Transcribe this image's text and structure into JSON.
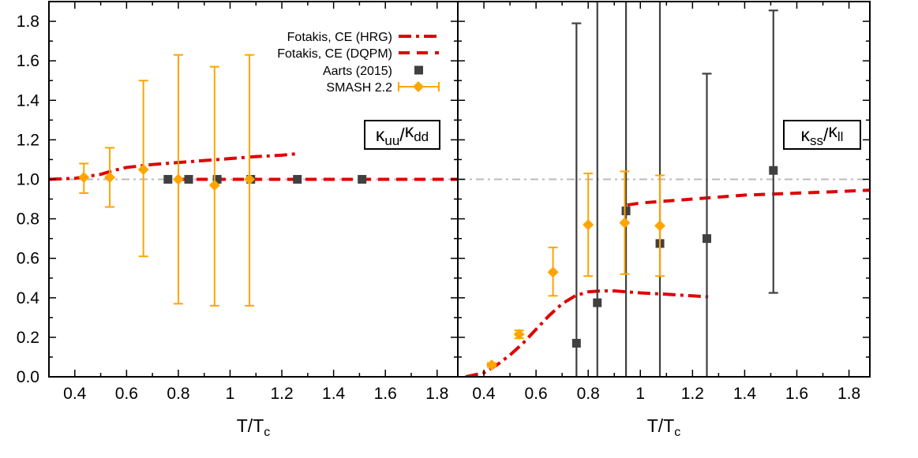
{
  "colors": {
    "hrg": "#e00000",
    "dqpm": "#e00000",
    "aarts": "#404040",
    "smash": "#ffa500",
    "reference": "#bbbbbb",
    "frame": "#000000"
  },
  "legend": {
    "placement": "top-center of left panel",
    "entries": [
      {
        "key": "hrg",
        "label": "Fotakis, CE (HRG)",
        "style": "dash-dot line"
      },
      {
        "key": "dqpm",
        "label": "Fotakis, CE (DQPM)",
        "style": "dashed line"
      },
      {
        "key": "aarts",
        "label": "Aarts (2015)",
        "style": "square marker"
      },
      {
        "key": "smash",
        "label": "SMASH 2.2",
        "style": "diamond with error bars"
      }
    ]
  },
  "chart_data": [
    {
      "type": "line",
      "panel": "left",
      "label": {
        "base": "κ",
        "sub1": "uu",
        "sep": "/",
        "sub2": "dd"
      },
      "xlabel": {
        "main": "T/T",
        "sub": "c"
      },
      "ylabel": "",
      "xlim": [
        0.3,
        1.88
      ],
      "ylim": [
        0.0,
        1.9
      ],
      "xticks": [
        0.4,
        0.6,
        0.8,
        1,
        1.2,
        1.4,
        1.6,
        1.8
      ],
      "yticks": [
        0.0,
        0.2,
        0.4,
        0.6,
        0.8,
        1.0,
        1.2,
        1.4,
        1.6,
        1.8
      ],
      "ytick_labels": [
        "0.0",
        "0.2",
        "0.4",
        "0.6",
        "0.8",
        "1.0",
        "1.2",
        "1.4",
        "1.6",
        "1.8"
      ],
      "xtick_labels": [
        "0.4",
        "0.6",
        "0.8",
        "1",
        "1.2",
        "1.4",
        "1.6",
        "1.8"
      ],
      "grid": false,
      "reference_line": {
        "y": 1.0
      },
      "series": [
        {
          "name": "Fotakis, CE (HRG)",
          "key": "hrg",
          "kind": "line",
          "x": [
            0.3,
            0.4,
            0.5,
            0.55,
            0.6,
            0.7,
            0.8,
            0.9,
            1.0,
            1.1,
            1.2,
            1.26
          ],
          "y": [
            1.0,
            1.005,
            1.025,
            1.045,
            1.06,
            1.075,
            1.085,
            1.095,
            1.105,
            1.115,
            1.122,
            1.13
          ]
        },
        {
          "name": "Fotakis, CE (DQPM)",
          "key": "dqpm",
          "kind": "line",
          "x": [
            0.8,
            1.0,
            1.2,
            1.4,
            1.6,
            1.88
          ],
          "y": [
            1.0,
            1.0,
            1.0,
            1.0,
            1.0,
            1.0
          ]
        },
        {
          "name": "Aarts (2015)",
          "key": "aarts",
          "kind": "points",
          "points": [
            {
              "x": 0.76,
              "y": 1.0
            },
            {
              "x": 0.84,
              "y": 1.0
            },
            {
              "x": 0.95,
              "y": 1.0
            },
            {
              "x": 1.08,
              "y": 1.0
            },
            {
              "x": 1.26,
              "y": 1.0
            },
            {
              "x": 1.51,
              "y": 1.0
            }
          ]
        },
        {
          "name": "SMASH 2.2",
          "key": "smash",
          "kind": "points",
          "points": [
            {
              "x": 0.435,
              "y": 1.01,
              "ylo": 0.93,
              "yhi": 1.08
            },
            {
              "x": 0.535,
              "y": 1.01,
              "ylo": 0.86,
              "yhi": 1.16
            },
            {
              "x": 0.665,
              "y": 1.05,
              "ylo": 0.61,
              "yhi": 1.5
            },
            {
              "x": 0.8,
              "y": 1.0,
              "ylo": 0.37,
              "yhi": 1.63
            },
            {
              "x": 0.94,
              "y": 0.97,
              "ylo": 0.36,
              "yhi": 1.57
            },
            {
              "x": 1.075,
              "y": 1.0,
              "ylo": 0.36,
              "yhi": 1.63
            }
          ]
        }
      ]
    },
    {
      "type": "line",
      "panel": "right",
      "label": {
        "base": "κ",
        "sub1": "ss",
        "sep": "/",
        "sub2": "ll"
      },
      "xlabel": {
        "main": "T/T",
        "sub": "c"
      },
      "ylabel": "",
      "xlim": [
        0.3,
        1.88
      ],
      "ylim": [
        0.0,
        1.9
      ],
      "xticks": [
        0.4,
        0.6,
        0.8,
        1,
        1.2,
        1.4,
        1.6,
        1.8
      ],
      "xtick_labels": [
        "0.4",
        "0.6",
        "0.8",
        "1",
        "1.2",
        "1.4",
        "1.6",
        "1.8"
      ],
      "grid": false,
      "reference_line": {
        "y": 1.0
      },
      "series": [
        {
          "name": "Fotakis, CE (HRG)",
          "key": "hrg",
          "kind": "line",
          "x": [
            0.33,
            0.4,
            0.45,
            0.5,
            0.55,
            0.6,
            0.65,
            0.7,
            0.75,
            0.8,
            0.85,
            0.9,
            0.95,
            1.0,
            1.1,
            1.2,
            1.26
          ],
          "y": [
            0.0,
            0.02,
            0.06,
            0.11,
            0.17,
            0.24,
            0.31,
            0.37,
            0.41,
            0.43,
            0.435,
            0.435,
            0.43,
            0.425,
            0.418,
            0.41,
            0.405
          ]
        },
        {
          "name": "Fotakis, CE (DQPM)",
          "key": "dqpm",
          "kind": "line",
          "x": [
            0.95,
            1.0,
            1.1,
            1.2,
            1.3,
            1.4,
            1.5,
            1.6,
            1.7,
            1.88
          ],
          "y": [
            0.87,
            0.88,
            0.89,
            0.9,
            0.91,
            0.92,
            0.925,
            0.93,
            0.935,
            0.945
          ]
        },
        {
          "name": "Aarts (2015)",
          "key": "aarts",
          "kind": "points",
          "points": [
            {
              "x": 0.755,
              "y": 0.17,
              "ylo": 0.0,
              "yhi": 1.79
            },
            {
              "x": 0.835,
              "y": 0.375,
              "ylo": 0.0,
              "yhi": 1.9
            },
            {
              "x": 0.945,
              "y": 0.84,
              "ylo": 0.0,
              "yhi": 1.9
            },
            {
              "x": 1.075,
              "y": 0.675,
              "ylo": 0.0,
              "yhi": 1.9
            },
            {
              "x": 1.255,
              "y": 0.7,
              "ylo": 0.0,
              "yhi": 1.535
            },
            {
              "x": 1.51,
              "y": 1.045,
              "ylo": 0.425,
              "yhi": 1.855
            }
          ]
        },
        {
          "name": "SMASH 2.2",
          "key": "smash",
          "kind": "points",
          "points": [
            {
              "x": 0.43,
              "y": 0.06,
              "ylo": 0.05,
              "yhi": 0.07
            },
            {
              "x": 0.535,
              "y": 0.215,
              "ylo": 0.195,
              "yhi": 0.235
            },
            {
              "x": 0.665,
              "y": 0.53,
              "ylo": 0.41,
              "yhi": 0.655
            },
            {
              "x": 0.8,
              "y": 0.77,
              "ylo": 0.51,
              "yhi": 1.03
            },
            {
              "x": 0.94,
              "y": 0.78,
              "ylo": 0.52,
              "yhi": 1.04
            },
            {
              "x": 1.075,
              "y": 0.765,
              "ylo": 0.51,
              "yhi": 1.02
            }
          ]
        }
      ]
    }
  ]
}
